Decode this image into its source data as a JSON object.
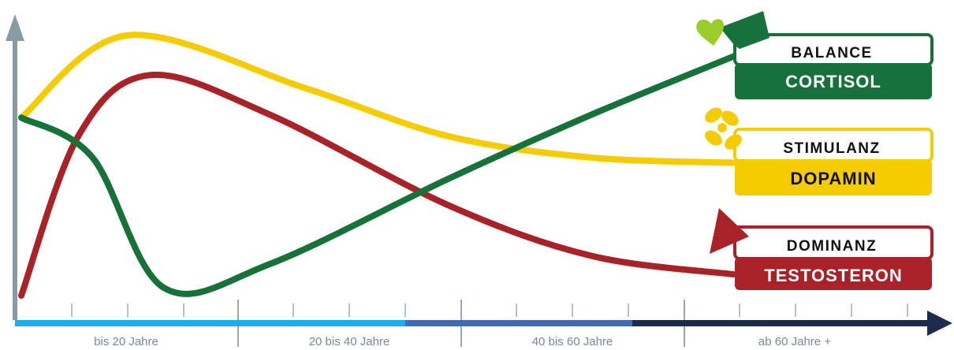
{
  "chart_data": {
    "type": "line",
    "x_labels": [
      "bis 20 Jahre",
      "20 bis 40 Jahre",
      "40 bis 60 Jahre",
      "ab 60 Jahre +"
    ],
    "series": [
      {
        "name": "DOPAMIN",
        "subtitle": "STIMULANZ",
        "color": "#f5cc00",
        "points": [
          [
            0,
            0.67
          ],
          [
            15,
            0.98
          ],
          [
            40,
            0.78
          ],
          [
            60,
            0.6
          ],
          [
            80,
            0.52
          ],
          [
            100,
            0.5
          ]
        ]
      },
      {
        "name": "TESTOSTERON",
        "subtitle": "DOMINANZ",
        "color": "#a82228",
        "points": [
          [
            0,
            0.0
          ],
          [
            8,
            0.6
          ],
          [
            18,
            0.83
          ],
          [
            35,
            0.68
          ],
          [
            60,
            0.34
          ],
          [
            80,
            0.15
          ],
          [
            100,
            0.08
          ]
        ]
      },
      {
        "name": "CORTISOL",
        "subtitle": "BALANCE",
        "color": "#17713a",
        "points": [
          [
            0,
            0.67
          ],
          [
            10,
            0.52
          ],
          [
            20,
            0.03
          ],
          [
            35,
            0.12
          ],
          [
            60,
            0.44
          ],
          [
            80,
            0.68
          ],
          [
            100,
            0.9
          ]
        ]
      }
    ],
    "legend_position": "right",
    "grid": false
  },
  "axis_segment_colors": [
    "#17b0e8",
    "#17b0e8",
    "#3e6bb8",
    "#1a2b4c"
  ],
  "icons": [
    "heart-icon",
    "clover-icon",
    "triangle-icon"
  ]
}
